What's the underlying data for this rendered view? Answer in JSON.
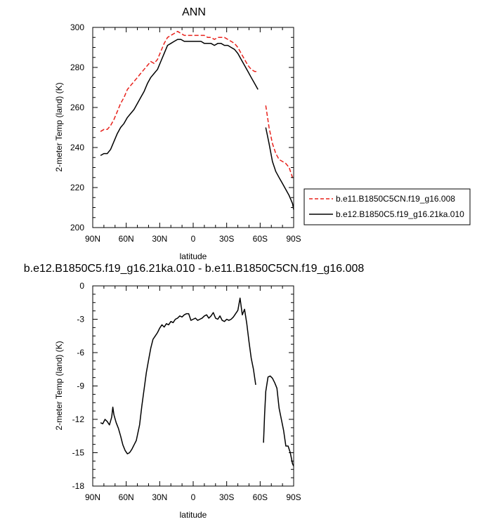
{
  "chart_data": [
    {
      "type": "line",
      "title": "ANN",
      "xlabel": "latitude",
      "ylabel": "2-meter Temp (land) (K)",
      "xlim": [
        90,
        -90
      ],
      "ylim": [
        200,
        300
      ],
      "xticks": [
        90,
        60,
        30,
        0,
        -30,
        -60,
        -90
      ],
      "xtick_labels": [
        "90N",
        "60N",
        "30N",
        "0",
        "30S",
        "60S",
        "90S"
      ],
      "yticks": [
        200,
        220,
        240,
        260,
        280,
        300
      ],
      "ytick_labels": [
        "200",
        "220",
        "240",
        "260",
        "280",
        "300"
      ],
      "grid": false,
      "legend_placement": "right",
      "series": [
        {
          "name": "b.e11.B1850C5CN.f19_g16.008",
          "color": "#e8221c",
          "dash": "dashed",
          "segments": [
            [
              [
                83,
                248
              ],
              [
                80,
                249
              ],
              [
                77,
                249
              ],
              [
                74,
                251
              ],
              [
                71,
                254
              ],
              [
                68,
                258
              ],
              [
                65,
                262
              ],
              [
                62,
                265
              ],
              [
                59,
                269
              ],
              [
                56,
                271
              ],
              [
                53,
                273
              ],
              [
                50,
                275
              ],
              [
                47,
                277
              ],
              [
                44,
                279
              ],
              [
                41,
                281
              ],
              [
                38,
                283
              ],
              [
                35,
                282
              ],
              [
                32,
                284
              ],
              [
                29,
                288
              ],
              [
                26,
                292
              ],
              [
                23,
                295
              ],
              [
                20,
                296
              ],
              [
                17,
                297
              ],
              [
                14,
                298
              ],
              [
                11,
                297
              ],
              [
                8,
                296
              ],
              [
                5,
                296
              ],
              [
                2,
                296
              ],
              [
                -1,
                296
              ],
              [
                -4,
                296
              ],
              [
                -7,
                296
              ],
              [
                -10,
                296
              ],
              [
                -13,
                295
              ],
              [
                -16,
                295
              ],
              [
                -19,
                294
              ],
              [
                -22,
                295
              ],
              [
                -25,
                295
              ],
              [
                -28,
                295
              ],
              [
                -31,
                294
              ],
              [
                -34,
                293
              ],
              [
                -37,
                292
              ],
              [
                -40,
                290
              ],
              [
                -43,
                287
              ],
              [
                -46,
                284
              ],
              [
                -49,
                281
              ],
              [
                -52,
                279
              ],
              [
                -55,
                278
              ],
              [
                -58,
                278
              ]
            ],
            [
              [
                -65,
                261
              ],
              [
                -68,
                250
              ],
              [
                -71,
                242
              ],
              [
                -74,
                237
              ],
              [
                -77,
                234
              ],
              [
                -80,
                233
              ],
              [
                -83,
                232
              ],
              [
                -86,
                230
              ],
              [
                -89,
                225
              ],
              [
                -90,
                224
              ]
            ]
          ]
        },
        {
          "name": "b.e12.B1850C5.f19_g16.21ka.010",
          "color": "#000000",
          "dash": "solid",
          "segments": [
            [
              [
                83,
                236
              ],
              [
                80,
                237
              ],
              [
                77,
                237
              ],
              [
                74,
                239
              ],
              [
                71,
                243
              ],
              [
                68,
                247
              ],
              [
                65,
                250
              ],
              [
                62,
                252
              ],
              [
                59,
                255
              ],
              [
                56,
                257
              ],
              [
                53,
                259
              ],
              [
                50,
                262
              ],
              [
                47,
                265
              ],
              [
                44,
                268
              ],
              [
                41,
                272
              ],
              [
                38,
                275
              ],
              [
                35,
                277
              ],
              [
                32,
                279
              ],
              [
                29,
                283
              ],
              [
                26,
                287
              ],
              [
                23,
                291
              ],
              [
                20,
                292
              ],
              [
                17,
                293
              ],
              [
                14,
                294
              ],
              [
                11,
                294
              ],
              [
                8,
                293
              ],
              [
                5,
                293
              ],
              [
                2,
                293
              ],
              [
                -1,
                293
              ],
              [
                -4,
                293
              ],
              [
                -7,
                293
              ],
              [
                -10,
                292
              ],
              [
                -13,
                292
              ],
              [
                -16,
                292
              ],
              [
                -19,
                291
              ],
              [
                -22,
                292
              ],
              [
                -25,
                292
              ],
              [
                -28,
                291
              ],
              [
                -31,
                291
              ],
              [
                -34,
                290
              ],
              [
                -37,
                289
              ],
              [
                -40,
                287
              ],
              [
                -43,
                284
              ],
              [
                -46,
                281
              ],
              [
                -49,
                278
              ],
              [
                -52,
                275
              ],
              [
                -55,
                272
              ],
              [
                -58,
                269
              ]
            ],
            [
              [
                -65,
                250
              ],
              [
                -68,
                242
              ],
              [
                -71,
                233
              ],
              [
                -74,
                228
              ],
              [
                -77,
                225
              ],
              [
                -80,
                222
              ],
              [
                -83,
                219
              ],
              [
                -86,
                216
              ],
              [
                -89,
                212
              ],
              [
                -90,
                209
              ]
            ]
          ]
        }
      ]
    },
    {
      "type": "line",
      "title": "b.e12.B1850C5.f19_g16.21ka.010 - b.e11.B1850C5CN.f19_g16.008",
      "xlabel": "latitude",
      "ylabel": "2-meter Temp (land) (K)",
      "xlim": [
        90,
        -90
      ],
      "ylim": [
        -18,
        0
      ],
      "xticks": [
        90,
        60,
        30,
        0,
        -30,
        -60,
        -90
      ],
      "xtick_labels": [
        "90N",
        "60N",
        "30N",
        "0",
        "30S",
        "60S",
        "90S"
      ],
      "yticks": [
        0,
        -3,
        -6,
        -9,
        -12,
        -15,
        -18
      ],
      "ytick_labels": [
        "0",
        "-3",
        "-6",
        "-9",
        "-12",
        "-15",
        "-18"
      ],
      "grid": false,
      "series": [
        {
          "color": "#000000",
          "dash": "solid",
          "segments": [
            [
              [
                83,
                -12.3
              ],
              [
                81,
                -12.4
              ],
              [
                79,
                -12.0
              ],
              [
                77,
                -12.2
              ],
              [
                75,
                -12.5
              ],
              [
                73,
                -11.8
              ],
              [
                72,
                -10.9
              ],
              [
                71,
                -11.6
              ],
              [
                69,
                -12.3
              ],
              [
                67,
                -12.8
              ],
              [
                65,
                -13.5
              ],
              [
                63,
                -14.3
              ],
              [
                61,
                -14.8
              ],
              [
                59,
                -15.1
              ],
              [
                57,
                -15.0
              ],
              [
                55,
                -14.7
              ],
              [
                53,
                -14.3
              ],
              [
                51,
                -13.9
              ],
              [
                48,
                -12.5
              ],
              [
                46,
                -10.8
              ],
              [
                44,
                -9.3
              ],
              [
                42,
                -7.8
              ],
              [
                40,
                -6.7
              ],
              [
                38,
                -5.6
              ],
              [
                36,
                -4.8
              ],
              [
                34,
                -4.5
              ],
              [
                32,
                -4.2
              ],
              [
                30,
                -3.8
              ],
              [
                28,
                -3.5
              ],
              [
                26,
                -3.7
              ],
              [
                24,
                -3.4
              ],
              [
                22,
                -3.5
              ],
              [
                20,
                -3.2
              ],
              [
                18,
                -3.3
              ],
              [
                16,
                -3.0
              ],
              [
                14,
                -2.9
              ],
              [
                12,
                -2.7
              ],
              [
                10,
                -2.8
              ],
              [
                8,
                -2.6
              ],
              [
                6,
                -2.5
              ],
              [
                4,
                -2.5
              ],
              [
                2,
                -3.1
              ],
              [
                0,
                -3.0
              ],
              [
                -2,
                -2.9
              ],
              [
                -4,
                -3.1
              ],
              [
                -6,
                -3.0
              ],
              [
                -8,
                -2.9
              ],
              [
                -10,
                -2.7
              ],
              [
                -12,
                -2.6
              ],
              [
                -14,
                -2.9
              ],
              [
                -16,
                -2.7
              ],
              [
                -18,
                -2.4
              ],
              [
                -20,
                -2.9
              ],
              [
                -22,
                -3.0
              ],
              [
                -24,
                -2.7
              ],
              [
                -26,
                -3.1
              ],
              [
                -28,
                -3.2
              ],
              [
                -30,
                -3.0
              ],
              [
                -32,
                -3.1
              ],
              [
                -34,
                -3.0
              ],
              [
                -36,
                -2.8
              ],
              [
                -38,
                -2.5
              ],
              [
                -40,
                -2.2
              ],
              [
                -42,
                -1.1
              ],
              [
                -44,
                -2.6
              ],
              [
                -46,
                -2.1
              ],
              [
                -48,
                -3.4
              ],
              [
                -50,
                -5.0
              ],
              [
                -52,
                -6.5
              ],
              [
                -54,
                -7.5
              ],
              [
                -56,
                -8.9
              ]
            ],
            [
              [
                -63,
                -14.1
              ],
              [
                -64,
                -11.5
              ],
              [
                -65,
                -9.5
              ],
              [
                -67,
                -8.2
              ],
              [
                -69,
                -8.1
              ],
              [
                -71,
                -8.3
              ],
              [
                -73,
                -8.7
              ],
              [
                -75,
                -9.2
              ],
              [
                -77,
                -11.0
              ],
              [
                -79,
                -12.0
              ],
              [
                -81,
                -13.0
              ],
              [
                -83,
                -14.4
              ],
              [
                -85,
                -14.4
              ],
              [
                -87,
                -15.0
              ],
              [
                -89,
                -16.0
              ],
              [
                -90,
                -16.2
              ]
            ]
          ]
        }
      ]
    }
  ]
}
